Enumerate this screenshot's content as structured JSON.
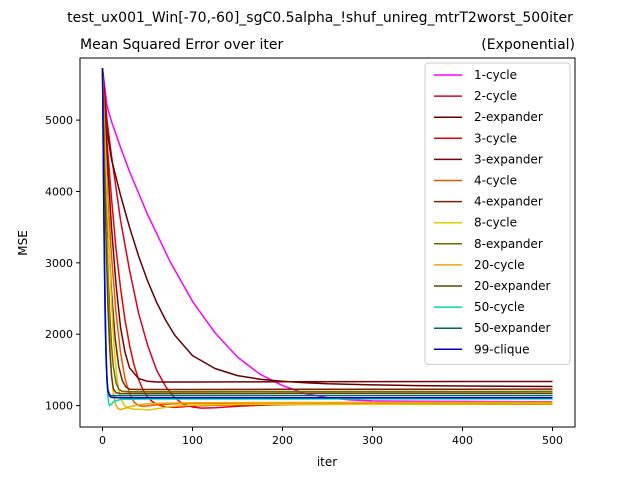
{
  "figure": {
    "suptitle": "test_ux001_Win[-70,-60]_sgC0.5alpha_!shuf_unireg_mtrT2worst_500iter"
  },
  "chart_data": {
    "type": "line",
    "title": "Mean Squared Error over iter",
    "title_right": "(Exponential)",
    "xlabel": "iter",
    "ylabel": "MSE",
    "xlim": [
      -25,
      525
    ],
    "ylim": [
      700,
      5870
    ],
    "xticks": [
      0,
      100,
      200,
      300,
      400,
      500
    ],
    "yticks": [
      1000,
      2000,
      3000,
      4000,
      5000
    ],
    "legend_position": "upper-right",
    "grid": false,
    "series": [
      {
        "name": "1-cycle",
        "color": "#ff00ff",
        "x": [
          0,
          5,
          10,
          20,
          30,
          50,
          75,
          100,
          125,
          150,
          175,
          200,
          225,
          250,
          275,
          300,
          350,
          400,
          450,
          500
        ],
        "y": [
          5730,
          5200,
          4980,
          4620,
          4280,
          3680,
          3020,
          2460,
          2020,
          1680,
          1440,
          1280,
          1170,
          1110,
          1080,
          1065,
          1060,
          1058,
          1056,
          1055
        ]
      },
      {
        "name": "2-cycle",
        "color": "#dd0022",
        "x": [
          0,
          5,
          10,
          20,
          30,
          40,
          50,
          60,
          70,
          80,
          90,
          100,
          110,
          125,
          150,
          175,
          200,
          250,
          300,
          400,
          500
        ],
        "y": [
          5730,
          5000,
          4500,
          3600,
          2900,
          2300,
          1850,
          1500,
          1270,
          1110,
          1020,
          980,
          965,
          970,
          990,
          1005,
          1015,
          1025,
          1030,
          1032,
          1033
        ]
      },
      {
        "name": "2-expander",
        "color": "#660000",
        "x": [
          0,
          5,
          10,
          20,
          30,
          40,
          50,
          60,
          70,
          80,
          100,
          125,
          150,
          175,
          200,
          225,
          250,
          300,
          350,
          400,
          450,
          500
        ],
        "y": [
          5730,
          4850,
          4450,
          3950,
          3500,
          3100,
          2750,
          2450,
          2200,
          1990,
          1700,
          1520,
          1420,
          1370,
          1340,
          1320,
          1305,
          1290,
          1280,
          1275,
          1270,
          1268
        ]
      },
      {
        "name": "3-cycle",
        "color": "#ee0000",
        "x": [
          0,
          5,
          10,
          15,
          20,
          25,
          30,
          35,
          40,
          45,
          50,
          55,
          60,
          70,
          80,
          90,
          100,
          125,
          150,
          200,
          300,
          400,
          500
        ],
        "y": [
          5730,
          4700,
          3900,
          3200,
          2650,
          2200,
          1850,
          1570,
          1370,
          1220,
          1120,
          1060,
          1020,
          980,
          975,
          985,
          995,
          1005,
          1010,
          1015,
          1018,
          1019,
          1020
        ]
      },
      {
        "name": "3-expander",
        "color": "#770000",
        "x": [
          0,
          5,
          10,
          15,
          20,
          25,
          30,
          40,
          50,
          60,
          80,
          100,
          150,
          200,
          300,
          400,
          500
        ],
        "y": [
          5730,
          4500,
          3500,
          2700,
          2100,
          1750,
          1530,
          1380,
          1340,
          1330,
          1330,
          1330,
          1332,
          1334,
          1336,
          1337,
          1338
        ]
      },
      {
        "name": "4-cycle",
        "color": "#ee5500",
        "x": [
          0,
          3,
          6,
          10,
          15,
          20,
          25,
          30,
          35,
          40,
          45,
          50,
          60,
          70,
          80,
          100,
          150,
          200,
          300,
          400,
          500
        ],
        "y": [
          5730,
          4700,
          3900,
          3100,
          2300,
          1750,
          1380,
          1170,
          1050,
          1000,
          990,
          995,
          1010,
          1020,
          1025,
          1030,
          1033,
          1035,
          1036,
          1036,
          1036
        ]
      },
      {
        "name": "4-expander",
        "color": "#772200",
        "x": [
          0,
          3,
          6,
          10,
          14,
          18,
          22,
          26,
          30,
          40,
          60,
          100,
          200,
          300,
          400,
          500
        ],
        "y": [
          5730,
          4500,
          3500,
          2600,
          1950,
          1550,
          1350,
          1260,
          1230,
          1225,
          1225,
          1226,
          1228,
          1229,
          1230,
          1231
        ]
      },
      {
        "name": "8-cycle",
        "color": "#ddcc00",
        "x": [
          0,
          2,
          4,
          6,
          8,
          10,
          12,
          14,
          17,
          20,
          25,
          30,
          35,
          40,
          45,
          50,
          55,
          60,
          70,
          80,
          90,
          100,
          125,
          150,
          200,
          300,
          400,
          500
        ],
        "y": [
          5730,
          5000,
          4300,
          3600,
          3000,
          2450,
          2000,
          1650,
          1300,
          1100,
          990,
          960,
          950,
          950,
          945,
          940,
          945,
          955,
          975,
          990,
          1000,
          1005,
          1010,
          1015,
          1018,
          1020,
          1021,
          1022
        ]
      },
      {
        "name": "8-expander",
        "color": "#776600",
        "x": [
          0,
          2,
          4,
          6,
          8,
          10,
          12,
          15,
          18,
          22,
          30,
          50,
          100,
          200,
          300,
          400,
          500
        ],
        "y": [
          5730,
          4600,
          3700,
          2900,
          2300,
          1850,
          1550,
          1320,
          1230,
          1200,
          1195,
          1195,
          1196,
          1197,
          1198,
          1198,
          1199
        ]
      },
      {
        "name": "20-cycle",
        "color": "#eeaa00",
        "x": [
          0,
          2,
          4,
          6,
          8,
          10,
          12,
          14,
          17,
          20,
          25,
          30,
          40,
          50,
          70,
          100,
          150,
          200,
          300,
          400,
          500
        ],
        "y": [
          5730,
          4600,
          3500,
          2600,
          1900,
          1450,
          1180,
          1030,
          960,
          945,
          960,
          985,
          1010,
          1025,
          1035,
          1040,
          1042,
          1043,
          1044,
          1044,
          1044
        ]
      },
      {
        "name": "20-expander",
        "color": "#664400",
        "x": [
          0,
          2,
          4,
          6,
          8,
          10,
          12,
          15,
          20,
          30,
          50,
          100,
          200,
          300,
          400,
          500
        ],
        "y": [
          5730,
          4400,
          3300,
          2400,
          1800,
          1420,
          1240,
          1180,
          1170,
          1170,
          1170,
          1171,
          1172,
          1172,
          1173,
          1173
        ]
      },
      {
        "name": "50-cycle",
        "color": "#00ddaa",
        "x": [
          0,
          1,
          2,
          3,
          4,
          5,
          6,
          7,
          8,
          10,
          12,
          15,
          20,
          30,
          50,
          100,
          200,
          300,
          400,
          500
        ],
        "y": [
          5730,
          4500,
          3400,
          2500,
          1800,
          1350,
          1120,
          1020,
          1000,
          1020,
          1050,
          1070,
          1085,
          1090,
          1092,
          1093,
          1093,
          1094,
          1094,
          1094
        ]
      },
      {
        "name": "50-expander",
        "color": "#006655",
        "x": [
          0,
          1,
          2,
          3,
          4,
          5,
          6,
          8,
          10,
          15,
          20,
          50,
          100,
          200,
          300,
          400,
          500
        ],
        "y": [
          5730,
          4400,
          3200,
          2300,
          1700,
          1380,
          1220,
          1150,
          1140,
          1140,
          1140,
          1141,
          1141,
          1142,
          1142,
          1142,
          1142
        ]
      },
      {
        "name": "99-clique",
        "color": "#0000cc",
        "x": [
          0,
          1,
          2,
          3,
          4,
          5,
          6,
          8,
          10,
          15,
          20,
          50,
          100,
          200,
          300,
          400,
          500
        ],
        "y": [
          5730,
          4300,
          3100,
          2200,
          1650,
          1350,
          1200,
          1130,
          1115,
          1112,
          1111,
          1110,
          1110,
          1110,
          1110,
          1110,
          1110
        ]
      }
    ]
  }
}
